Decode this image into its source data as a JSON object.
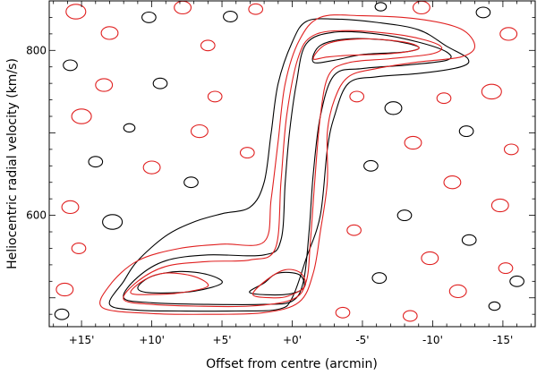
{
  "chart_data": {
    "type": "contour",
    "xlabel": "Offset from centre (arcmin)",
    "ylabel": "Heliocentric radial velocity (km/s)",
    "xlim": [
      17.3,
      -17.3
    ],
    "ylim": [
      465,
      860
    ],
    "x_ticks": [
      {
        "value": 15,
        "label": "+15'"
      },
      {
        "value": 10,
        "label": "+10'"
      },
      {
        "value": 5,
        "label": "+5'"
      },
      {
        "value": 0,
        "label": "+0'"
      },
      {
        "value": -5,
        "label": "-5'"
      },
      {
        "value": -10,
        "label": "-10'"
      },
      {
        "value": -15,
        "label": "-15'"
      }
    ],
    "y_ticks": [
      {
        "value": 600,
        "label": "600"
      },
      {
        "value": 800,
        "label": "800"
      }
    ],
    "colors": {
      "observed": "#000000",
      "model": "#e02020"
    },
    "series": [
      {
        "color": "observed",
        "contours": [
          [
            [
              13,
              492
            ],
            [
              12,
              520
            ],
            [
              11,
              545
            ],
            [
              9,
              575
            ],
            [
              7,
              592
            ],
            [
              5,
              602
            ],
            [
              3,
              610
            ],
            [
              2,
              640
            ],
            [
              1.5,
              700
            ],
            [
              1,
              760
            ],
            [
              0,
              810
            ],
            [
              -1,
              835
            ],
            [
              -3,
              838
            ],
            [
              -6,
              834
            ],
            [
              -9,
              825
            ],
            [
              -11,
              805
            ],
            [
              -12.5,
              790
            ],
            [
              -12,
              780
            ],
            [
              -9,
              772
            ],
            [
              -6,
              768
            ],
            [
              -4,
              760
            ],
            [
              -3,
              720
            ],
            [
              -2.5,
              680
            ],
            [
              -2,
              600
            ],
            [
              -1,
              548
            ],
            [
              0,
              500
            ],
            [
              1,
              486
            ],
            [
              4,
              484
            ],
            [
              8,
              484
            ],
            [
              11,
              485
            ]
          ],
          [
            [
              12,
              500
            ],
            [
              11,
              525
            ],
            [
              9,
              545
            ],
            [
              6,
              552
            ],
            [
              2,
              552
            ],
            [
              0.8,
              570
            ],
            [
              0.5,
              640
            ],
            [
              0.2,
              700
            ],
            [
              -0.3,
              760
            ],
            [
              -1,
              808
            ],
            [
              -3,
              822
            ],
            [
              -6,
              820
            ],
            [
              -9,
              810
            ],
            [
              -11,
              798
            ],
            [
              -11,
              788
            ],
            [
              -8,
              782
            ],
            [
              -5,
              778
            ],
            [
              -3,
              770
            ],
            [
              -2,
              720
            ],
            [
              -1.5,
              650
            ],
            [
              -1.2,
              580
            ],
            [
              -0.8,
              520
            ],
            [
              0,
              496
            ],
            [
              2,
              492
            ],
            [
              6,
              492
            ],
            [
              10,
              494
            ]
          ],
          [
            [
              11,
              512
            ],
            [
              10,
              526
            ],
            [
              8,
              532
            ],
            [
              6,
              528
            ],
            [
              5,
              518
            ],
            [
              7,
              508
            ],
            [
              10,
              506
            ]
          ],
          [
            [
              3,
              506
            ],
            [
              2,
              518
            ],
            [
              1,
              530
            ],
            [
              -0.5,
              528
            ],
            [
              -0.8,
              512
            ],
            [
              0.5,
              504
            ]
          ],
          [
            [
              -1.5,
              786
            ],
            [
              -2,
              806
            ],
            [
              -4,
              814
            ],
            [
              -7,
              812
            ],
            [
              -9,
              804
            ],
            [
              -8,
              798
            ],
            [
              -5,
              795
            ],
            [
              -3,
              788
            ]
          ]
        ]
      },
      {
        "color": "model",
        "contours": [
          [
            [
              13.5,
              488
            ],
            [
              13,
              515
            ],
            [
              11,
              545
            ],
            [
              8,
              560
            ],
            [
              5,
              565
            ],
            [
              2,
              568
            ],
            [
              1.5,
              620
            ],
            [
              1,
              690
            ],
            [
              0.5,
              760
            ],
            [
              -0.5,
              812
            ],
            [
              -2,
              840
            ],
            [
              -5,
              842
            ],
            [
              -9,
              838
            ],
            [
              -12,
              826
            ],
            [
              -13,
              805
            ],
            [
              -12,
              792
            ],
            [
              -9,
              786
            ],
            [
              -6,
              778
            ],
            [
              -4,
              768
            ],
            [
              -3,
              740
            ],
            [
              -2.5,
              700
            ],
            [
              -2.5,
              640
            ],
            [
              -2,
              580
            ],
            [
              -1.5,
              530
            ],
            [
              -0.5,
              495
            ],
            [
              2,
              482
            ],
            [
              6,
              480
            ],
            [
              10,
              481
            ]
          ],
          [
            [
              12,
              498
            ],
            [
              11,
              520
            ],
            [
              9,
              538
            ],
            [
              6,
              544
            ],
            [
              3,
              546
            ],
            [
              1.2,
              560
            ],
            [
              0.8,
              640
            ],
            [
              0.4,
              720
            ],
            [
              -0.4,
              790
            ],
            [
              -1.5,
              818
            ],
            [
              -4,
              824
            ],
            [
              -8,
              818
            ],
            [
              -10.5,
              806
            ],
            [
              -10,
              796
            ],
            [
              -7,
              790
            ],
            [
              -4,
              785
            ],
            [
              -2.6,
              770
            ],
            [
              -2,
              720
            ],
            [
              -1.6,
              640
            ],
            [
              -1.3,
              570
            ],
            [
              -1,
              520
            ],
            [
              0,
              498
            ],
            [
              3,
              490
            ],
            [
              7,
              490
            ],
            [
              10,
              492
            ]
          ],
          [
            [
              11.5,
              506
            ],
            [
              10.5,
              522
            ],
            [
              9,
              530
            ],
            [
              7,
              526
            ],
            [
              6,
              514
            ],
            [
              8,
              506
            ],
            [
              10,
              504
            ]
          ],
          [
            [
              2.8,
              504
            ],
            [
              1.8,
              522
            ],
            [
              0.5,
              534
            ],
            [
              -0.6,
              530
            ],
            [
              -0.9,
              514
            ],
            [
              0.3,
              502
            ],
            [
              1.5,
              500
            ]
          ],
          [
            [
              -1.5,
              790
            ],
            [
              -2.5,
              808
            ],
            [
              -5,
              814
            ],
            [
              -8,
              810
            ],
            [
              -9,
              802
            ],
            [
              -7,
              796
            ],
            [
              -4,
              794
            ],
            [
              -2.5,
              792
            ]
          ]
        ]
      }
    ],
    "noise_blobs": [
      {
        "color": "model",
        "x": 15.4,
        "y": 847,
        "r": 0.7
      },
      {
        "color": "model",
        "x": 13.0,
        "y": 821,
        "r": 0.6
      },
      {
        "color": "observed",
        "x": 10.2,
        "y": 840,
        "r": 0.5
      },
      {
        "color": "model",
        "x": 7.8,
        "y": 852,
        "r": 0.6
      },
      {
        "color": "model",
        "x": 6.0,
        "y": 806,
        "r": 0.5
      },
      {
        "color": "observed",
        "x": 4.4,
        "y": 841,
        "r": 0.5
      },
      {
        "color": "model",
        "x": 2.6,
        "y": 850,
        "r": 0.5
      },
      {
        "color": "observed",
        "x": -6.3,
        "y": 853,
        "r": 0.4
      },
      {
        "color": "model",
        "x": -9.2,
        "y": 852,
        "r": 0.6
      },
      {
        "color": "observed",
        "x": -13.6,
        "y": 846,
        "r": 0.5
      },
      {
        "color": "model",
        "x": -15.4,
        "y": 820,
        "r": 0.6
      },
      {
        "color": "observed",
        "x": 15.8,
        "y": 782,
        "r": 0.5
      },
      {
        "color": "model",
        "x": 13.4,
        "y": 758,
        "r": 0.6
      },
      {
        "color": "observed",
        "x": 9.4,
        "y": 760,
        "r": 0.5
      },
      {
        "color": "model",
        "x": 5.5,
        "y": 744,
        "r": 0.5
      },
      {
        "color": "model",
        "x": 15.0,
        "y": 720,
        "r": 0.7
      },
      {
        "color": "observed",
        "x": 11.6,
        "y": 706,
        "r": 0.4
      },
      {
        "color": "model",
        "x": 6.6,
        "y": 702,
        "r": 0.6
      },
      {
        "color": "model",
        "x": 3.2,
        "y": 676,
        "r": 0.5
      },
      {
        "color": "observed",
        "x": 14.0,
        "y": 665,
        "r": 0.5
      },
      {
        "color": "model",
        "x": 10.0,
        "y": 658,
        "r": 0.6
      },
      {
        "color": "observed",
        "x": 7.2,
        "y": 640,
        "r": 0.5
      },
      {
        "color": "model",
        "x": 15.8,
        "y": 610,
        "r": 0.6
      },
      {
        "color": "observed",
        "x": 12.8,
        "y": 592,
        "r": 0.7
      },
      {
        "color": "model",
        "x": 15.2,
        "y": 560,
        "r": 0.5
      },
      {
        "color": "model",
        "x": 16.2,
        "y": 510,
        "r": 0.6
      },
      {
        "color": "observed",
        "x": 16.4,
        "y": 480,
        "r": 0.5
      },
      {
        "color": "model",
        "x": -4.6,
        "y": 744,
        "r": 0.5
      },
      {
        "color": "observed",
        "x": -7.2,
        "y": 730,
        "r": 0.6
      },
      {
        "color": "model",
        "x": -10.8,
        "y": 742,
        "r": 0.5
      },
      {
        "color": "model",
        "x": -14.2,
        "y": 750,
        "r": 0.7
      },
      {
        "color": "observed",
        "x": -12.4,
        "y": 702,
        "r": 0.5
      },
      {
        "color": "model",
        "x": -8.6,
        "y": 688,
        "r": 0.6
      },
      {
        "color": "model",
        "x": -15.6,
        "y": 680,
        "r": 0.5
      },
      {
        "color": "observed",
        "x": -5.6,
        "y": 660,
        "r": 0.5
      },
      {
        "color": "model",
        "x": -11.4,
        "y": 640,
        "r": 0.6
      },
      {
        "color": "model",
        "x": -14.8,
        "y": 612,
        "r": 0.6
      },
      {
        "color": "observed",
        "x": -8.0,
        "y": 600,
        "r": 0.5
      },
      {
        "color": "model",
        "x": -4.4,
        "y": 582,
        "r": 0.5
      },
      {
        "color": "observed",
        "x": -12.6,
        "y": 570,
        "r": 0.5
      },
      {
        "color": "model",
        "x": -9.8,
        "y": 548,
        "r": 0.6
      },
      {
        "color": "model",
        "x": -15.2,
        "y": 536,
        "r": 0.5
      },
      {
        "color": "observed",
        "x": -6.2,
        "y": 524,
        "r": 0.5
      },
      {
        "color": "model",
        "x": -11.8,
        "y": 508,
        "r": 0.6
      },
      {
        "color": "observed",
        "x": -14.4,
        "y": 490,
        "r": 0.4
      },
      {
        "color": "model",
        "x": -8.4,
        "y": 478,
        "r": 0.5
      },
      {
        "color": "model",
        "x": -3.6,
        "y": 482,
        "r": 0.5
      },
      {
        "color": "observed",
        "x": -16.0,
        "y": 520,
        "r": 0.5
      }
    ]
  }
}
